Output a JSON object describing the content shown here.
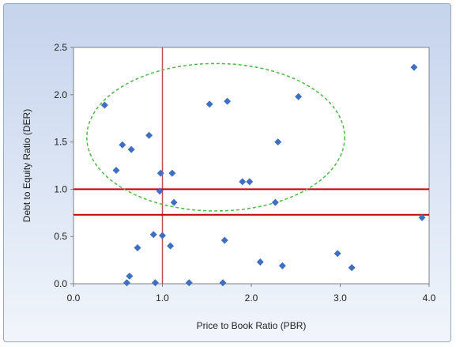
{
  "chart_data": {
    "type": "scatter",
    "title": "",
    "xlabel": "Price to Book Ratio (PBR)",
    "ylabel": "Debt to Equity Ratio (DER)",
    "xlim": [
      0,
      4
    ],
    "ylim": [
      0,
      2.5
    ],
    "x_ticks": [
      "0.0",
      "1.0",
      "2.0",
      "3.0",
      "4.0"
    ],
    "y_ticks": [
      "0.0",
      "0.5",
      "1.0",
      "1.5",
      "2.0",
      "2.5"
    ],
    "grid": false,
    "legend": "none",
    "marker_color": "#3f6fc0",
    "series": [
      {
        "points": [
          {
            "x": 0.35,
            "y": 1.89
          },
          {
            "x": 0.55,
            "y": 1.47
          },
          {
            "x": 0.65,
            "y": 1.42
          },
          {
            "x": 0.85,
            "y": 1.57
          },
          {
            "x": 0.48,
            "y": 1.2
          },
          {
            "x": 0.98,
            "y": 1.17
          },
          {
            "x": 1.11,
            "y": 1.17
          },
          {
            "x": 0.97,
            "y": 0.98
          },
          {
            "x": 1.13,
            "y": 0.86
          },
          {
            "x": 1.53,
            "y": 1.9
          },
          {
            "x": 1.73,
            "y": 1.93
          },
          {
            "x": 2.53,
            "y": 1.98
          },
          {
            "x": 2.3,
            "y": 1.5
          },
          {
            "x": 1.9,
            "y": 1.08
          },
          {
            "x": 1.98,
            "y": 1.08
          },
          {
            "x": 2.27,
            "y": 0.86
          },
          {
            "x": 3.83,
            "y": 2.29
          },
          {
            "x": 3.92,
            "y": 0.7
          },
          {
            "x": 0.9,
            "y": 0.52
          },
          {
            "x": 1.0,
            "y": 0.51
          },
          {
            "x": 1.09,
            "y": 0.4
          },
          {
            "x": 0.72,
            "y": 0.38
          },
          {
            "x": 1.7,
            "y": 0.46
          },
          {
            "x": 2.1,
            "y": 0.23
          },
          {
            "x": 2.35,
            "y": 0.19
          },
          {
            "x": 2.97,
            "y": 0.32
          },
          {
            "x": 3.13,
            "y": 0.17
          },
          {
            "x": 0.63,
            "y": 0.08
          },
          {
            "x": 0.6,
            "y": 0.01
          },
          {
            "x": 0.92,
            "y": 0.01
          },
          {
            "x": 1.3,
            "y": 0.01
          },
          {
            "x": 1.68,
            "y": 0.01
          }
        ]
      }
    ],
    "reference_lines": [
      {
        "orientation": "vertical",
        "value": 1.0,
        "color": "#c0504d"
      },
      {
        "orientation": "horizontal",
        "value": 1.0,
        "color": "#c00000"
      },
      {
        "orientation": "horizontal",
        "value": 0.73,
        "color": "#c00000"
      }
    ],
    "annotations": [
      {
        "shape": "ellipse",
        "style": "dashed",
        "color": "#4cb848",
        "cx": 1.6,
        "cy": 1.55,
        "rx": 1.45,
        "ry": 0.78
      }
    ]
  }
}
